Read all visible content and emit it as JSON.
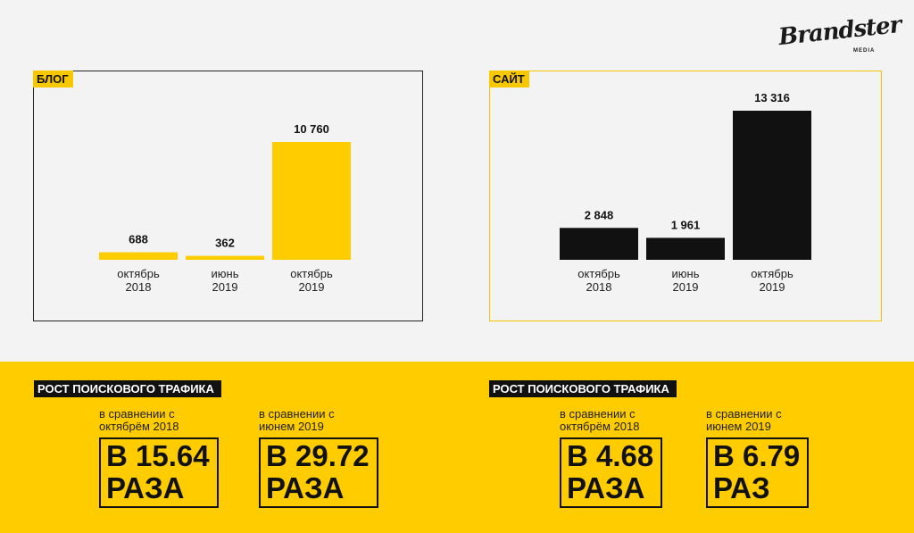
{
  "logo": {
    "main": "Brandster",
    "sub": "MEDIA"
  },
  "colors": {
    "accent": "#ffcc00",
    "dark": "#111111",
    "background": "#f3f3f3"
  },
  "chart_data": [
    {
      "type": "bar",
      "title": "БЛОГ",
      "categories": [
        [
          "октябрь",
          "2018"
        ],
        [
          "июнь",
          "2019"
        ],
        [
          "октябрь",
          "2019"
        ]
      ],
      "values": [
        688,
        362,
        10760
      ],
      "value_labels": [
        "688",
        "362",
        "10 760"
      ],
      "bar_color": "#ffcc00"
    },
    {
      "type": "bar",
      "title": "САЙТ",
      "categories": [
        [
          "октябрь",
          "2018"
        ],
        [
          "июнь",
          "2019"
        ],
        [
          "октябрь",
          "2019"
        ]
      ],
      "values": [
        2848,
        1961,
        13316
      ],
      "value_labels": [
        "2 848",
        "1 961",
        "13 316"
      ],
      "bar_color": "#111111"
    }
  ],
  "growth": {
    "blog": {
      "title": "РОСТ ПОИСКОВОГО ТРАФИКА",
      "items": [
        {
          "note_line1": "в сравнении с",
          "note_line2": "октябрём 2018",
          "value_line1": "В 15.64",
          "value_line2": "РАЗА"
        },
        {
          "note_line1": "в сравнении с",
          "note_line2": "июнем 2019",
          "value_line1": "В 29.72",
          "value_line2": "РАЗА"
        }
      ]
    },
    "site": {
      "title": "РОСТ ПОИСКОВОГО ТРАФИКА",
      "items": [
        {
          "note_line1": "в сравнении с",
          "note_line2": "октябрём 2018",
          "value_line1": "В 4.68",
          "value_line2": "РАЗА"
        },
        {
          "note_line1": "в сравнении с",
          "note_line2": "июнем 2019",
          "value_line1": "В 6.79",
          "value_line2": "РАЗ"
        }
      ]
    }
  }
}
